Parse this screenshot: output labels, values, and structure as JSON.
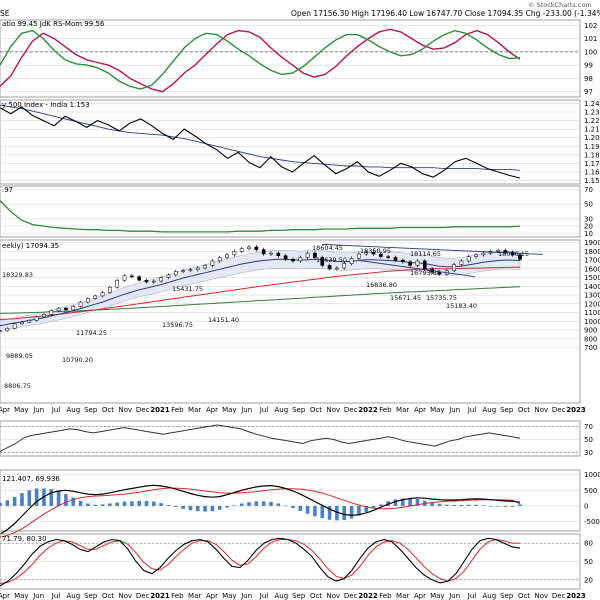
{
  "colors": {
    "green": "#2e8b3a",
    "crimson": "#b0174a",
    "navy": "#2c3a8c",
    "black": "#000000",
    "red": "#d42a2a",
    "histogram": "#4a7fc1",
    "band": "#d9e0f0",
    "vol_green": "#3b7a3b"
  },
  "header": {
    "left": "SE",
    "ohlc": "Open 17156.30  High 17196.40  Low 16747.70  Close 17094.35  Chg -233.00 (-1.34%) ▼",
    "watermark": "© StockCharts.com"
  },
  "chart_data": [
    {
      "type": "line",
      "title": "atio 99.45  JdK RS-Mom 99.56",
      "ticks": [
        "102",
        "101",
        "100",
        "99",
        "98",
        "97"
      ],
      "series": [
        {
          "name": "JdK RS-Ratio",
          "values": [
            97.4,
            98.2,
            99.6,
            100.8,
            101.4,
            101.0,
            100.4,
            99.8,
            99.4,
            99.2,
            99.0,
            98.6,
            98.0,
            97.6,
            97.2,
            97.0,
            97.6,
            98.4,
            99.0,
            99.8,
            100.6,
            101.3,
            101.6,
            101.5,
            101.1,
            100.3,
            99.6,
            99.0,
            98.4,
            98.1,
            98.3,
            98.9,
            99.7,
            100.4,
            101.0,
            101.5,
            101.7,
            101.5,
            101.0,
            100.5,
            100.2,
            100.3,
            100.7,
            101.3,
            101.6,
            101.3,
            100.7,
            100.0,
            99.45
          ]
        },
        {
          "name": "JdK RS-Momentum",
          "values": [
            99.0,
            100.4,
            101.4,
            101.6,
            101.0,
            100.1,
            99.4,
            99.1,
            99.0,
            98.8,
            98.4,
            97.8,
            97.4,
            97.2,
            97.5,
            98.3,
            99.3,
            100.3,
            101.0,
            101.4,
            101.3,
            100.8,
            100.2,
            99.7,
            99.1,
            98.6,
            98.3,
            98.4,
            98.9,
            99.6,
            100.3,
            100.9,
            101.3,
            101.3,
            100.9,
            100.4,
            100.0,
            99.7,
            99.8,
            100.2,
            100.8,
            101.3,
            101.6,
            101.4,
            100.9,
            100.3,
            99.8,
            99.5,
            99.56
          ]
        }
      ]
    },
    {
      "type": "line",
      "title": "y 500 Index - India 1.153",
      "ticks": [
        "1.24",
        "1.23",
        "1.22",
        "1.21",
        "1.20",
        "1.19",
        "1.18",
        "1.17",
        "1.16",
        "1.15"
      ],
      "series": [
        {
          "name": "Relative ratio",
          "values": [
            1.235,
            1.228,
            1.236,
            1.226,
            1.22,
            1.214,
            1.225,
            1.219,
            1.212,
            1.22,
            1.215,
            1.208,
            1.217,
            1.222,
            1.214,
            1.205,
            1.198,
            1.21,
            1.202,
            1.193,
            1.186,
            1.176,
            1.183,
            1.171,
            1.165,
            1.178,
            1.166,
            1.16,
            1.17,
            1.179,
            1.168,
            1.158,
            1.164,
            1.172,
            1.16,
            1.155,
            1.162,
            1.17,
            1.166,
            1.158,
            1.154,
            1.162,
            1.172,
            1.176,
            1.17,
            1.164,
            1.16,
            1.156,
            1.153
          ]
        },
        {
          "name": "Moving average",
          "values": [
            1.238,
            1.236,
            1.234,
            1.231,
            1.228,
            1.225,
            1.222,
            1.219,
            1.216,
            1.213,
            1.21,
            1.208,
            1.206,
            1.205,
            1.204,
            1.203,
            1.201,
            1.199,
            1.196,
            1.193,
            1.19,
            1.187,
            1.184,
            1.181,
            1.178,
            1.176,
            1.174,
            1.172,
            1.171,
            1.17,
            1.169,
            1.168,
            1.167,
            1.167,
            1.166,
            1.166,
            1.165,
            1.165,
            1.165,
            1.165,
            1.165,
            1.164,
            1.164,
            1.164,
            1.164,
            1.163,
            1.163,
            1.163,
            1.162
          ]
        }
      ]
    },
    {
      "type": "line",
      "title": ".97",
      "ticks": [
        "70",
        "50",
        "30",
        "20",
        "10"
      ],
      "series": [
        {
          "name": "ADX",
          "values": [
            55,
            40,
            28,
            22,
            20,
            18,
            17,
            16,
            15,
            15,
            14,
            14,
            13,
            13,
            13,
            12,
            12,
            12,
            12,
            12,
            12,
            12,
            13,
            13,
            13,
            14,
            14,
            15,
            15,
            15,
            16,
            16,
            16,
            17,
            17,
            17,
            17,
            18,
            18,
            18,
            18,
            18,
            19,
            19,
            19,
            19,
            19,
            19,
            20
          ]
        }
      ]
    },
    {
      "type": "line",
      "title": "eekly) 17094.35",
      "ticks": [
        "1900",
        "1800",
        "1700",
        "1600",
        "1500",
        "1400",
        "1300",
        "1200",
        "1100",
        "1000",
        "900",
        "800",
        "700"
      ],
      "x_labels": [
        "Apr",
        "May",
        "Jun",
        "Jul",
        "Aug",
        "Sep",
        "Oct",
        "Nov",
        "Dec",
        "2021",
        "Feb",
        "Mar",
        "Apr",
        "May",
        "Jun",
        "Jul",
        "Aug",
        "Sep",
        "Oct",
        "Nov",
        "Dec",
        "2022",
        "Feb",
        "Mar",
        "Apr",
        "May",
        "Jun",
        "Jul",
        "Aug",
        "Sep",
        "Oct",
        "Nov",
        "Dec",
        "2023"
      ],
      "annotations": [
        "18329.83",
        "9889.05",
        "8806.75",
        "11794.25",
        "10790.20",
        "15431.75",
        "13596.75",
        "14151.40",
        "18604.45",
        "17639.50",
        "18350.95",
        "16836.80",
        "15671.45",
        "18114.65",
        "16793.85",
        "15735.75",
        "15183.40",
        "18096.15"
      ],
      "series": [
        {
          "name": "Weekly close",
          "values": [
            8900,
            9200,
            9700,
            9900,
            10100,
            10500,
            10800,
            11200,
            11500,
            11300,
            11700,
            12200,
            12600,
            12900,
            13300,
            13900,
            14700,
            15200,
            15100,
            14700,
            14500,
            14600,
            15000,
            15300,
            15700,
            15800,
            15900,
            16100,
            16400,
            16900,
            17300,
            17600,
            18000,
            18300,
            18500,
            18200,
            17700,
            17800,
            17500,
            17100,
            16900,
            17300,
            17800,
            17300,
            16400,
            16000,
            16100,
            16600,
            17200,
            17700,
            17900,
            17700,
            17400,
            17300,
            17000,
            16800,
            16400,
            16900,
            16000,
            15600,
            15400,
            15800,
            16500,
            16900,
            17400,
            17600,
            17800,
            18000,
            18100,
            17900,
            17600,
            17094
          ]
        },
        {
          "name": "MA 1",
          "values": [
            9500,
            9650,
            9800,
            9950,
            10100,
            10250,
            10400,
            10600,
            10800,
            11000,
            11200,
            11450,
            11700,
            11950,
            12200,
            12500,
            12800,
            13100,
            13350,
            13600,
            13800,
            14000,
            14200,
            14450,
            14700,
            14950,
            15150,
            15350,
            15550,
            15750,
            15950,
            16150,
            16350,
            16550,
            16700,
            16850,
            16950,
            17050,
            17100,
            17100,
            17050,
            17000,
            17050,
            17100,
            17050,
            16950,
            16850,
            16800,
            16850,
            16950,
            17050,
            17050,
            17000,
            16950,
            16900,
            16850,
            16700,
            16700,
            16600,
            16450,
            16300,
            16250,
            16250,
            16300,
            16450,
            16600,
            16750,
            16850,
            16950,
            17000,
            17000,
            16950
          ]
        },
        {
          "name": "MA 2",
          "values": [
            10200,
            10250,
            10300,
            10380,
            10460,
            10540,
            10620,
            10700,
            10800,
            10900,
            11000,
            11100,
            11200,
            11300,
            11420,
            11540,
            11660,
            11780,
            11900,
            12020,
            12140,
            12260,
            12380,
            12500,
            12620,
            12740,
            12860,
            12980,
            13100,
            13220,
            13340,
            13460,
            13580,
            13700,
            13820,
            13940,
            14050,
            14160,
            14270,
            14380,
            14490,
            14600,
            14710,
            14820,
            14930,
            15030,
            15130,
            15220,
            15310,
            15400,
            15480,
            15560,
            15640,
            15720,
            15790,
            15850,
            15900,
            15950,
            15980,
            16000,
            16010,
            16020,
            16030,
            16040,
            16060,
            16080,
            16100,
            16120,
            16140,
            16160,
            16180,
            16200
          ]
        },
        {
          "name": "MA 3",
          "values": [
            10900,
            10920,
            10940,
            10960,
            10990,
            11020,
            11050,
            11080,
            11110,
            11140,
            11170,
            11210,
            11250,
            11290,
            11330,
            11370,
            11410,
            11450,
            11490,
            11540,
            11590,
            11640,
            11690,
            11740,
            11790,
            11840,
            11890,
            11940,
            11990,
            12040,
            12090,
            12140,
            12190,
            12240,
            12290,
            12340,
            12390,
            12440,
            12490,
            12540,
            12590,
            12640,
            12690,
            12740,
            12790,
            12840,
            12890,
            12940,
            12990,
            13040,
            13090,
            13140,
            13190,
            13240,
            13280,
            13320,
            13360,
            13400,
            13440,
            13480,
            13520,
            13560,
            13600,
            13640,
            13680,
            13720,
            13760,
            13800,
            13840,
            13880,
            13920,
            13960
          ]
        }
      ]
    },
    {
      "type": "line",
      "ticks": [
        "70",
        "50",
        "30"
      ],
      "series": [
        {
          "name": "RSI",
          "values": [
            32,
            38,
            44,
            52,
            56,
            58,
            60,
            62,
            64,
            66,
            65,
            62,
            60,
            62,
            64,
            66,
            68,
            66,
            64,
            62,
            60,
            58,
            60,
            62,
            64,
            66,
            68,
            70,
            72,
            70,
            68,
            66,
            62,
            58,
            55,
            52,
            50,
            48,
            46,
            44,
            48,
            50,
            52,
            50,
            46,
            44,
            46,
            48,
            50,
            52,
            54,
            52,
            48,
            46,
            44,
            42,
            40,
            44,
            48,
            50,
            54,
            56,
            58,
            60,
            58,
            56,
            54,
            52
          ]
        }
      ]
    },
    {
      "type": "line",
      "title": "121.407, 69.936",
      "ticks": [
        "1000",
        "500",
        "0",
        "-500"
      ],
      "series": [
        {
          "name": "MACD",
          "values": [
            -900,
            -760,
            -560,
            -320,
            -80,
            140,
            300,
            420,
            480,
            500,
            470,
            420,
            380,
            360,
            380,
            420,
            470,
            520,
            560,
            600,
            640,
            660,
            640,
            600,
            540,
            470,
            400,
            340,
            300,
            280,
            300,
            360,
            430,
            500,
            560,
            610,
            640,
            650,
            620,
            560,
            480,
            380,
            260,
            140,
            20,
            -100,
            -200,
            -270,
            -300,
            -280,
            -220,
            -140,
            -40,
            60,
            140,
            200,
            240,
            260,
            250,
            220,
            200,
            190,
            190,
            200,
            220,
            230,
            220,
            200,
            180,
            160,
            150,
            121
          ]
        },
        {
          "name": "Signal",
          "values": [
            -1000,
            -940,
            -850,
            -730,
            -580,
            -420,
            -260,
            -120,
            10,
            120,
            200,
            260,
            300,
            320,
            330,
            340,
            360,
            380,
            410,
            440,
            480,
            520,
            550,
            570,
            570,
            560,
            540,
            510,
            480,
            450,
            420,
            410,
            410,
            420,
            440,
            460,
            490,
            520,
            540,
            550,
            550,
            540,
            510,
            470,
            410,
            340,
            260,
            180,
            100,
            30,
            -30,
            -70,
            -90,
            -90,
            -70,
            -40,
            0,
            40,
            80,
            110,
            130,
            150,
            160,
            170,
            180,
            190,
            200,
            200,
            200,
            190,
            180,
            70
          ]
        }
      ]
    },
    {
      "type": "line",
      "title": "71.79, 80.30",
      "ticks": [
        "80",
        "50",
        "20"
      ],
      "series": [
        {
          "name": "%K",
          "values": [
            10,
            18,
            30,
            45,
            62,
            75,
            82,
            86,
            84,
            78,
            70,
            66,
            74,
            82,
            86,
            84,
            70,
            50,
            35,
            30,
            40,
            55,
            68,
            78,
            84,
            86,
            82,
            70,
            55,
            42,
            40,
            52,
            68,
            80,
            86,
            88,
            86,
            80,
            70,
            58,
            40,
            25,
            18,
            22,
            36,
            55,
            72,
            82,
            86,
            82,
            70,
            55,
            40,
            28,
            20,
            15,
            18,
            30,
            50,
            70,
            84,
            88,
            86,
            80,
            74,
            72
          ]
        },
        {
          "name": "%D",
          "values": [
            14,
            16,
            22,
            32,
            45,
            60,
            72,
            80,
            84,
            82,
            76,
            70,
            70,
            76,
            82,
            84,
            78,
            64,
            48,
            38,
            36,
            45,
            58,
            70,
            80,
            84,
            84,
            78,
            66,
            52,
            44,
            46,
            58,
            72,
            82,
            86,
            86,
            84,
            78,
            68,
            54,
            38,
            26,
            22,
            28,
            42,
            60,
            74,
            82,
            84,
            80,
            70,
            56,
            42,
            30,
            22,
            18,
            22,
            34,
            52,
            70,
            82,
            86,
            84,
            80,
            80
          ]
        }
      ]
    }
  ]
}
